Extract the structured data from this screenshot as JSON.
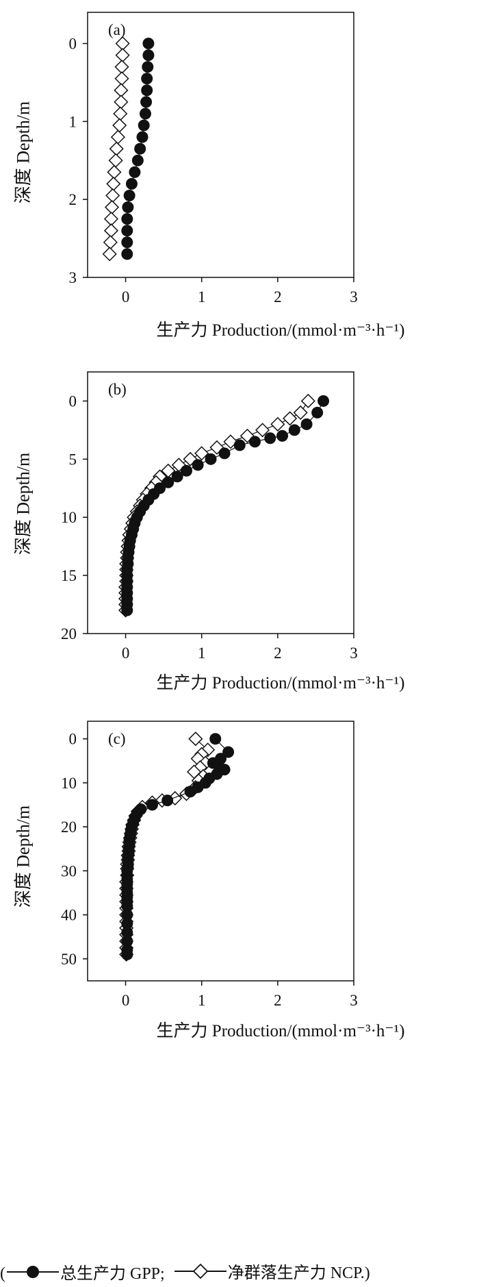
{
  "chart_data": [
    {
      "type": "scatter",
      "panel_label": "(a)",
      "xlabel": "生产力 Production/(mmol·m⁻³·h⁻¹)",
      "ylabel": "深度 Depth/m",
      "xlim": [
        -0.5,
        3
      ],
      "ylim": [
        3,
        -0.4
      ],
      "xticks": [
        "0",
        "1",
        "2",
        "3"
      ],
      "yticks": [
        "0",
        "1",
        "2",
        "3"
      ],
      "series": [
        {
          "name": "总生产力 GPP",
          "marker": "filled-circle",
          "x": [
            0.3,
            0.3,
            0.29,
            0.28,
            0.28,
            0.27,
            0.26,
            0.24,
            0.22,
            0.19,
            0.16,
            0.12,
            0.08,
            0.05,
            0.03,
            0.02,
            0.02,
            0.02,
            0.02
          ],
          "y": [
            0.0,
            0.15,
            0.3,
            0.45,
            0.6,
            0.75,
            0.9,
            1.05,
            1.2,
            1.35,
            1.5,
            1.65,
            1.8,
            1.95,
            2.1,
            2.25,
            2.4,
            2.55,
            2.7
          ]
        },
        {
          "name": "净群落生产力 NCP",
          "marker": "open-diamond",
          "x": [
            -0.04,
            -0.04,
            -0.05,
            -0.05,
            -0.06,
            -0.06,
            -0.07,
            -0.08,
            -0.1,
            -0.12,
            -0.13,
            -0.15,
            -0.16,
            -0.17,
            -0.18,
            -0.19,
            -0.19,
            -0.2,
            -0.21
          ],
          "y": [
            0.0,
            0.15,
            0.3,
            0.45,
            0.6,
            0.75,
            0.9,
            1.05,
            1.2,
            1.35,
            1.5,
            1.65,
            1.8,
            1.95,
            2.1,
            2.25,
            2.4,
            2.55,
            2.7
          ]
        }
      ]
    },
    {
      "type": "scatter",
      "panel_label": "(b)",
      "xlabel": "生产力 Production/(mmol·m⁻³·h⁻¹)",
      "ylabel": "深度 Depth/m",
      "xlim": [
        -0.5,
        3
      ],
      "ylim": [
        20,
        -2.5
      ],
      "xticks": [
        "0",
        "1",
        "2",
        "3"
      ],
      "yticks": [
        "0",
        "5",
        "10",
        "15",
        "20"
      ],
      "series": [
        {
          "name": "总生产力 GPP",
          "marker": "filled-circle",
          "x": [
            2.6,
            2.52,
            2.38,
            2.22,
            2.06,
            1.9,
            1.7,
            1.5,
            1.3,
            1.12,
            0.95,
            0.8,
            0.68,
            0.56,
            0.45,
            0.37,
            0.3,
            0.24,
            0.19,
            0.15,
            0.12,
            0.1,
            0.08,
            0.06,
            0.05,
            0.04,
            0.03,
            0.03,
            0.02,
            0.02,
            0.02,
            0.02,
            0.02,
            0.02,
            0.02,
            0.02
          ],
          "y": [
            0.0,
            1.0,
            2.0,
            2.5,
            3.0,
            3.2,
            3.5,
            3.8,
            4.5,
            5.0,
            5.5,
            6.0,
            6.5,
            7.0,
            7.5,
            8.0,
            8.5,
            9.0,
            9.5,
            10.0,
            10.5,
            11.0,
            11.5,
            12.0,
            12.5,
            13.0,
            13.5,
            14.0,
            14.5,
            15.0,
            15.5,
            16.0,
            16.5,
            17.0,
            17.5,
            18.0
          ]
        },
        {
          "name": "净群落生产力 NCP",
          "marker": "open-diamond",
          "x": [
            2.4,
            2.3,
            2.16,
            2.0,
            1.8,
            1.6,
            1.38,
            1.2,
            1.0,
            0.85,
            0.7,
            0.56,
            0.45,
            0.4,
            0.34,
            0.28,
            0.23,
            0.19,
            0.15,
            0.11,
            0.09,
            0.07,
            0.05,
            0.04,
            0.03,
            0.02,
            0.02,
            0.01,
            0.01,
            0.01,
            0.01,
            0.0,
            0.0,
            0.0,
            0.0,
            0.0
          ],
          "y": [
            0.0,
            1.0,
            1.5,
            2.0,
            2.5,
            3.0,
            3.5,
            4.0,
            4.5,
            5.0,
            5.5,
            6.0,
            6.5,
            7.0,
            7.5,
            8.0,
            8.5,
            9.0,
            9.5,
            10.0,
            10.5,
            11.0,
            11.5,
            12.0,
            12.5,
            13.0,
            13.5,
            14.0,
            14.5,
            15.0,
            15.5,
            16.0,
            16.5,
            17.0,
            17.5,
            18.0
          ]
        }
      ]
    },
    {
      "type": "scatter",
      "panel_label": "(c)",
      "xlabel": "生产力 Production/(mmol·m⁻³·h⁻¹)",
      "ylabel": "深度 Depth/m",
      "xlim": [
        -0.5,
        3
      ],
      "ylim": [
        55,
        -4
      ],
      "xticks": [
        "0",
        "1",
        "2",
        "3"
      ],
      "yticks": [
        "0",
        "10",
        "20",
        "30",
        "40",
        "50"
      ],
      "series": [
        {
          "name": "总生产力 GPP",
          "marker": "filled-circle",
          "x": [
            1.18,
            1.35,
            1.25,
            1.15,
            1.22,
            1.3,
            1.2,
            1.1,
            1.05,
            0.95,
            0.85,
            0.55,
            0.35,
            0.2,
            0.15,
            0.12,
            0.1,
            0.08,
            0.07,
            0.06,
            0.05,
            0.05,
            0.04,
            0.04,
            0.03,
            0.03,
            0.03,
            0.02,
            0.02,
            0.02,
            0.02,
            0.02,
            0.02,
            0.02,
            0.02,
            0.02,
            0.02,
            0.02,
            0.02,
            0.02,
            0.02,
            0.02
          ],
          "y": [
            0.0,
            3.0,
            4.5,
            5.5,
            6.0,
            7.0,
            8.0,
            9.0,
            10.0,
            11.0,
            12.0,
            14.0,
            15.0,
            16.0,
            17.0,
            18.0,
            19.0,
            20.0,
            21.0,
            22.0,
            23.0,
            24.0,
            25.0,
            26.0,
            27.0,
            28.0,
            29.0,
            30.0,
            31.0,
            32.0,
            33.0,
            34.0,
            35.0,
            36.0,
            37.0,
            38.0,
            40.0,
            42.0,
            44.0,
            46.0,
            48.0,
            49.0
          ]
        },
        {
          "name": "净群落生产力 NCP",
          "marker": "open-diamond",
          "x": [
            0.92,
            1.08,
            1.0,
            0.95,
            1.05,
            0.98,
            0.9,
            1.02,
            0.96,
            0.92,
            0.8,
            0.65,
            0.48,
            0.35,
            0.22,
            0.16,
            0.13,
            0.11,
            0.09,
            0.08,
            0.07,
            0.06,
            0.05,
            0.04,
            0.04,
            0.03,
            0.03,
            0.02,
            0.02,
            0.02,
            0.01,
            0.01,
            0.01,
            0.01,
            0.01,
            0.01,
            0.01,
            0.01,
            0.01,
            0.01,
            0.01,
            0.01
          ],
          "y": [
            0.0,
            2.5,
            3.5,
            4.5,
            5.5,
            6.5,
            7.5,
            8.5,
            9.5,
            11.0,
            12.5,
            13.5,
            14.0,
            14.5,
            15.5,
            16.5,
            17.5,
            18.5,
            19.5,
            20.5,
            21.5,
            22.5,
            23.5,
            24.5,
            25.5,
            26.5,
            27.5,
            28.5,
            29.5,
            31.0,
            32.5,
            34.0,
            35.5,
            37.0,
            38.5,
            40.0,
            41.5,
            43.0,
            44.5,
            46.0,
            47.5,
            49.0
          ]
        }
      ]
    }
  ],
  "legend": {
    "open_paren": "(",
    "gpp_label": "总生产力 GPP;",
    "ncp_label": "净群落生产力 NCP.)"
  }
}
